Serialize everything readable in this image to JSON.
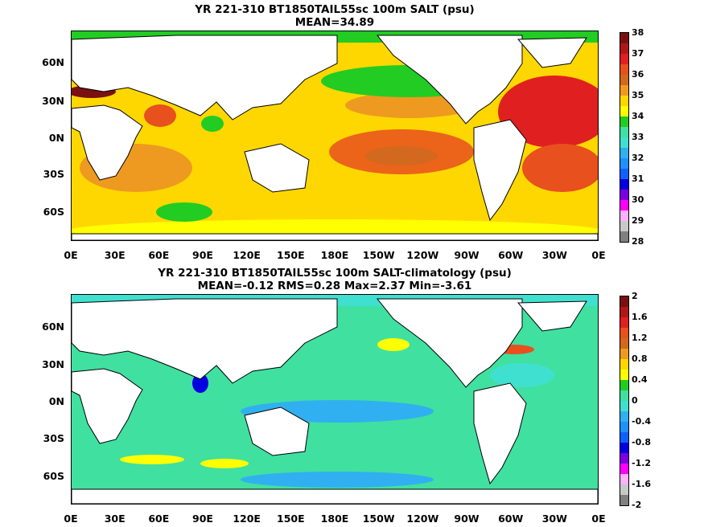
{
  "panels": [
    {
      "title1": "YR 221-310 BT1850TAIL55sc 100m SALT (psu)",
      "title2": "MEAN=34.89",
      "colorbar": {
        "labels": [
          "38",
          "37",
          "36",
          "35",
          "34",
          "33",
          "32",
          "31",
          "30",
          "29",
          "28"
        ],
        "colors": [
          "#7a1010",
          "#b01818",
          "#e02020",
          "#e8501e",
          "#d2691e",
          "#ee9a20",
          "#ffd700",
          "#ffff00",
          "#22cc22",
          "#40e0a0",
          "#40e0d0",
          "#30b0f0",
          "#2090ff",
          "#1060ff",
          "#0000e0",
          "#7a00e0",
          "#ff00ff",
          "#ffb0ff",
          "#c8c8c8",
          "#808080"
        ]
      },
      "ocean_color": "#ffd700"
    },
    {
      "title1": "YR 221-310 BT1850TAIL55sc 100m SALT-climatology (psu)",
      "title2": "MEAN=-0.12   RMS=0.28   Max=2.37   Min=-3.61",
      "colorbar": {
        "labels": [
          "2",
          "1.6",
          "1.2",
          "0.8",
          "0.4",
          "0",
          "-0.4",
          "-0.8",
          "-1.2",
          "-1.6",
          "-2"
        ],
        "colors": [
          "#7a1010",
          "#b01818",
          "#e02020",
          "#e8501e",
          "#d2691e",
          "#ee9a20",
          "#ffd700",
          "#ffff00",
          "#22cc22",
          "#40e0a0",
          "#40e0d0",
          "#30b0f0",
          "#2090ff",
          "#1060ff",
          "#0000e0",
          "#7a00e0",
          "#ff00ff",
          "#ffb0ff",
          "#c8c8c8",
          "#808080"
        ]
      },
      "ocean_color": "#44dd99"
    }
  ],
  "lat_labels": [
    "60N",
    "30N",
    "0N",
    "30S",
    "60S"
  ],
  "lon_labels": [
    "0E",
    "30E",
    "60E",
    "90E",
    "120E",
    "150E",
    "180E",
    "150W",
    "120W",
    "90W",
    "60W",
    "30W",
    "0E"
  ]
}
